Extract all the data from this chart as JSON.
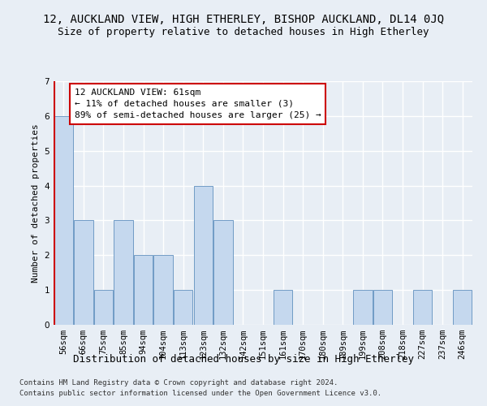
{
  "title": "12, AUCKLAND VIEW, HIGH ETHERLEY, BISHOP AUCKLAND, DL14 0JQ",
  "subtitle": "Size of property relative to detached houses in High Etherley",
  "xlabel": "Distribution of detached houses by size in High Etherley",
  "ylabel": "Number of detached properties",
  "footer1": "Contains HM Land Registry data © Crown copyright and database right 2024.",
  "footer2": "Contains public sector information licensed under the Open Government Licence v3.0.",
  "categories": [
    "56sqm",
    "66sqm",
    "75sqm",
    "85sqm",
    "94sqm",
    "104sqm",
    "113sqm",
    "123sqm",
    "132sqm",
    "142sqm",
    "151sqm",
    "161sqm",
    "170sqm",
    "180sqm",
    "189sqm",
    "199sqm",
    "208sqm",
    "218sqm",
    "227sqm",
    "237sqm",
    "246sqm"
  ],
  "values": [
    6,
    3,
    1,
    3,
    2,
    2,
    1,
    4,
    3,
    0,
    0,
    1,
    0,
    0,
    0,
    1,
    1,
    0,
    1,
    0,
    1
  ],
  "bar_color": "#c5d8ee",
  "bar_edgecolor": "#6090be",
  "highlight_index": 0,
  "highlight_line_color": "#cc0000",
  "ylim": [
    0,
    7
  ],
  "yticks": [
    0,
    1,
    2,
    3,
    4,
    5,
    6,
    7
  ],
  "annotation_text": "12 AUCKLAND VIEW: 61sqm\n← 11% of detached houses are smaller (3)\n89% of semi-detached houses are larger (25) →",
  "annotation_box_color": "#cc0000",
  "fig_background": "#e8eef5",
  "axes_background": "#e8eef5",
  "grid_color": "#ffffff",
  "title_fontsize": 10,
  "subtitle_fontsize": 9,
  "xlabel_fontsize": 9,
  "ylabel_fontsize": 8,
  "tick_fontsize": 7.5,
  "footer_fontsize": 6.5,
  "annot_fontsize": 8
}
